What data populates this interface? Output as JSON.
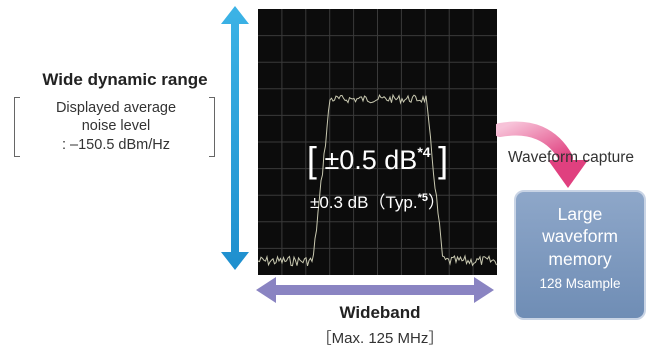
{
  "left_spec": {
    "title": "Wide dynamic range",
    "noise_lines": [
      "Displayed average",
      "noise level",
      ": –150.5 dBm/Hz"
    ]
  },
  "screen": {
    "accuracy_main": "±0.5 dB",
    "accuracy_note": "*4",
    "accuracy_typ_prefix": "±0.3 dB（Typ.",
    "accuracy_typ_note": "*5",
    "accuracy_typ_suffix": "）"
  },
  "bottom_spec": {
    "title": "Wideband",
    "subtitle": "［Max. 125 MHz］"
  },
  "capture": {
    "label": "Waveform capture",
    "memory_lines": [
      "Large",
      "waveform",
      "memory"
    ],
    "memory_size": "128 Msample"
  },
  "colors": {
    "vertical_arrow": "#2a9fd8",
    "horizontal_arrow": "#8a84c2",
    "capture_arrow": "#e8508e",
    "memory_box": "#7690b8",
    "trace": "#c8c8b0"
  }
}
